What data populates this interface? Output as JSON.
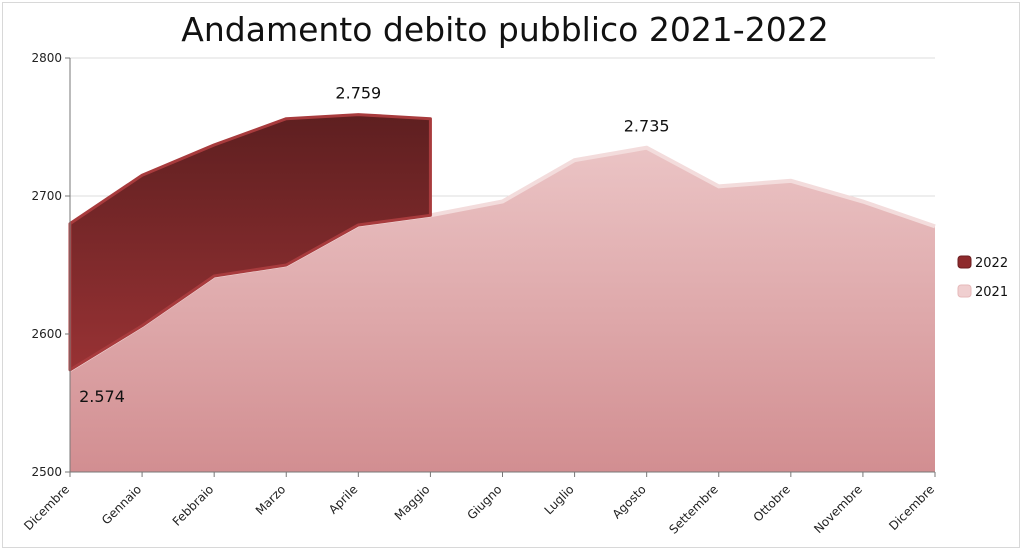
{
  "chart_data": {
    "type": "area",
    "title": "Andamento debito pubblico 2021-2022",
    "xlabel": "",
    "ylabel": "",
    "ylim": [
      2500,
      2800
    ],
    "yticks": [
      2500,
      2600,
      2700,
      2800
    ],
    "grid": true,
    "legend_position": "right",
    "categories": [
      "Dicembre",
      "Gennaio",
      "Febbraio",
      "Marzo",
      "Aprile",
      "Maggio",
      "Giugno",
      "Luglio",
      "Agosto",
      "Settembre",
      "Ottobre",
      "Novembre",
      "Dicembre"
    ],
    "series": [
      {
        "name": "2021",
        "color": "#e3a6a9",
        "values": [
          2574,
          2606,
          2642,
          2650,
          2679,
          2686,
          2696,
          2726,
          2735,
          2707,
          2711,
          2696,
          2678
        ]
      },
      {
        "name": "2022",
        "color": "#7a2224",
        "values": [
          2680,
          2715,
          2737,
          2756,
          2759,
          2756,
          null,
          null,
          null,
          null,
          null,
          null,
          null
        ]
      }
    ],
    "annotations": [
      {
        "text": "2.574",
        "series": "2021",
        "index": 0,
        "position": "below"
      },
      {
        "text": "2.759",
        "series": "2022",
        "index": 4,
        "position": "above"
      },
      {
        "text": "2.735",
        "series": "2021",
        "index": 8,
        "position": "above"
      }
    ]
  }
}
